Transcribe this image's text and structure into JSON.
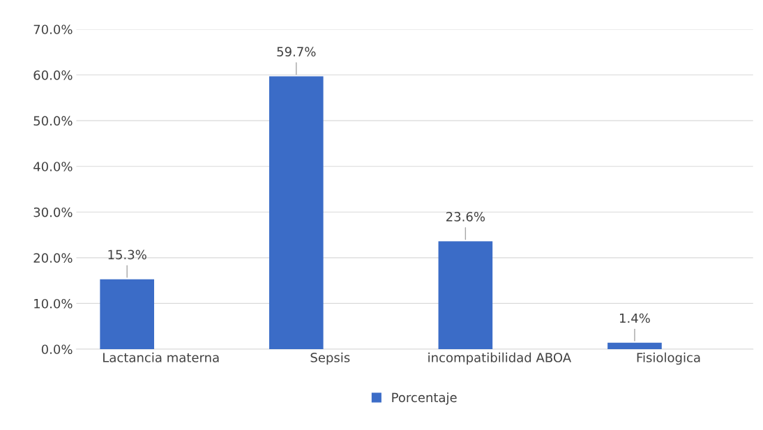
{
  "chart_data": {
    "type": "bar",
    "categories": [
      "Lactancia materna",
      "Sepsis",
      "incompatibilidad ABOA",
      "Fisiologica"
    ],
    "series": [
      {
        "name": "Porcentaje",
        "color": "#3b6cc7",
        "values": [
          15.3,
          59.7,
          23.6,
          1.4
        ],
        "value_labels": [
          "15.3%",
          "59.7%",
          "23.6%",
          "1.4%"
        ]
      }
    ],
    "ylim": [
      0,
      70
    ],
    "yticks": [
      {
        "value": 0,
        "label": "0.0%"
      },
      {
        "value": 10,
        "label": "10.0%"
      },
      {
        "value": 20,
        "label": "20.0%"
      },
      {
        "value": 30,
        "label": "30.0%"
      },
      {
        "value": 40,
        "label": "40.0%"
      },
      {
        "value": 50,
        "label": "50.0%"
      },
      {
        "value": 60,
        "label": "60.0%"
      },
      {
        "value": 70,
        "label": "70.0%"
      }
    ],
    "grid": "y",
    "legend": "bottom"
  }
}
